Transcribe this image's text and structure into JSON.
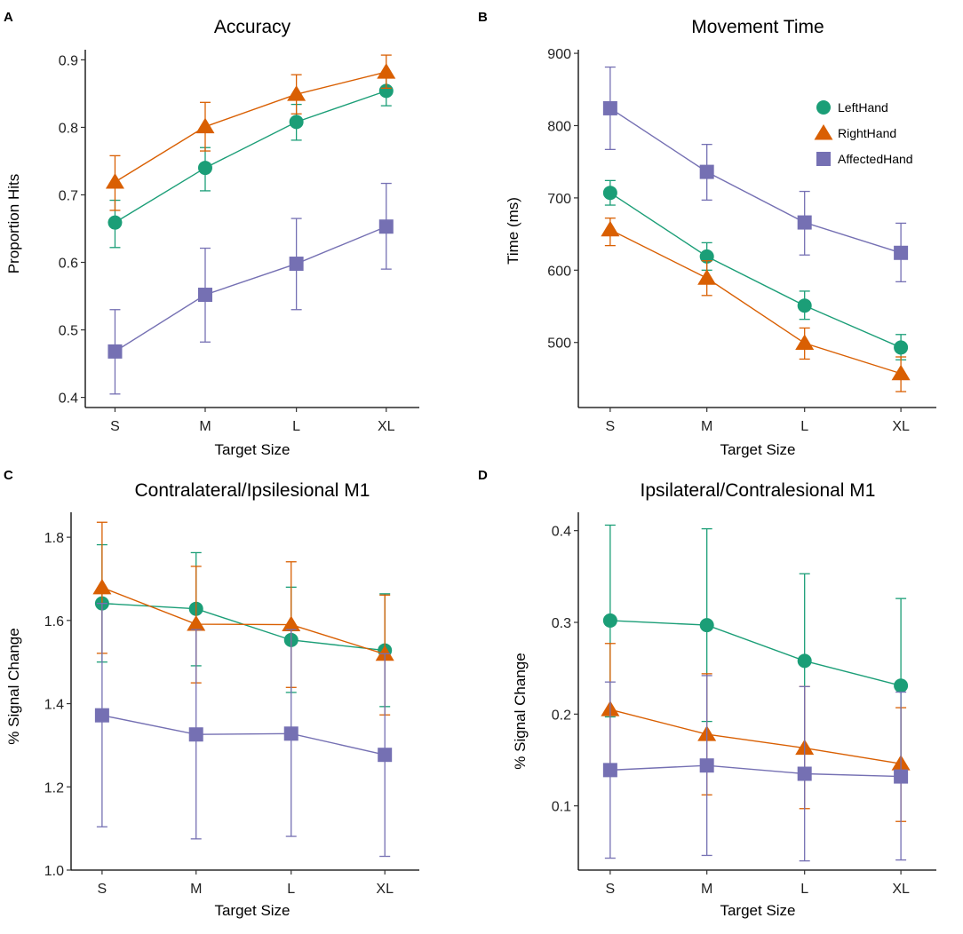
{
  "colors": {
    "LeftHand": "#1b9e77",
    "RightHand": "#d95f02",
    "AffectedHand": "#7570b3"
  },
  "chart_data": [
    {
      "panel": "A",
      "type": "line",
      "title": "Accuracy",
      "xlabel": "Target Size",
      "ylabel": "Proportion Hits",
      "categories": [
        "S",
        "M",
        "L",
        "XL"
      ],
      "ylim": [
        0.385,
        0.915
      ],
      "yticks": [
        0.4,
        0.5,
        0.6,
        0.7,
        0.8,
        0.9
      ],
      "ytick_labels": [
        "0.4",
        "0.5",
        "0.6",
        "0.7",
        "0.8",
        "0.9"
      ],
      "legend": false,
      "series": [
        {
          "name": "LeftHand",
          "marker": "circle",
          "values": [
            0.659,
            0.74,
            0.808,
            0.854
          ],
          "err_low": [
            0.622,
            0.706,
            0.781,
            0.832
          ],
          "err_high": [
            0.692,
            0.77,
            0.834,
            0.877
          ]
        },
        {
          "name": "RightHand",
          "marker": "triangle",
          "values": [
            0.719,
            0.801,
            0.849,
            0.882
          ],
          "err_low": [
            0.677,
            0.765,
            0.82,
            0.858
          ],
          "err_high": [
            0.758,
            0.837,
            0.878,
            0.907
          ]
        },
        {
          "name": "AffectedHand",
          "marker": "square",
          "values": [
            0.468,
            0.552,
            0.598,
            0.653
          ],
          "err_low": [
            0.405,
            0.482,
            0.53,
            0.59
          ],
          "err_high": [
            0.53,
            0.621,
            0.665,
            0.717
          ]
        }
      ]
    },
    {
      "panel": "B",
      "type": "line",
      "title": "Movement Time",
      "xlabel": "Target Size",
      "ylabel": "Time (ms)",
      "categories": [
        "S",
        "M",
        "L",
        "XL"
      ],
      "ylim": [
        410,
        905
      ],
      "yticks": [
        500,
        600,
        700,
        800,
        900
      ],
      "ytick_labels": [
        "500",
        "600",
        "700",
        "800",
        "900"
      ],
      "legend": true,
      "legend_position": "top-right",
      "series": [
        {
          "name": "LeftHand",
          "marker": "circle",
          "values": [
            707,
            619,
            551,
            493
          ],
          "err_low": [
            690,
            600,
            532,
            476
          ],
          "err_high": [
            724,
            638,
            571,
            511
          ]
        },
        {
          "name": "RightHand",
          "marker": "triangle",
          "values": [
            656,
            589,
            499,
            457
          ],
          "err_low": [
            634,
            565,
            477,
            432
          ],
          "err_high": [
            672,
            613,
            520,
            480
          ]
        },
        {
          "name": "AffectedHand",
          "marker": "square",
          "values": [
            824,
            736,
            666,
            624
          ],
          "err_low": [
            767,
            697,
            621,
            584
          ],
          "err_high": [
            881,
            774,
            709,
            665
          ]
        }
      ]
    },
    {
      "panel": "C",
      "type": "line",
      "title": "Contralateral/Ipsilesional M1",
      "xlabel": "Target Size",
      "ylabel": "% Signal Change",
      "categories": [
        "S",
        "M",
        "L",
        "XL"
      ],
      "ylim": [
        1.0,
        1.86
      ],
      "yticks": [
        1.0,
        1.2,
        1.4,
        1.6,
        1.8
      ],
      "ytick_labels": [
        "1.0",
        "1.2",
        "1.4",
        "1.6",
        "1.8"
      ],
      "legend": false,
      "series": [
        {
          "name": "LeftHand",
          "marker": "circle",
          "values": [
            1.641,
            1.628,
            1.553,
            1.528
          ],
          "err_low": [
            1.5,
            1.491,
            1.427,
            1.393
          ],
          "err_high": [
            1.782,
            1.763,
            1.68,
            1.664
          ]
        },
        {
          "name": "RightHand",
          "marker": "triangle",
          "values": [
            1.679,
            1.591,
            1.59,
            1.519
          ],
          "err_low": [
            1.521,
            1.45,
            1.439,
            1.373
          ],
          "err_high": [
            1.836,
            1.73,
            1.741,
            1.661
          ]
        },
        {
          "name": "AffectedHand",
          "marker": "square",
          "values": [
            1.372,
            1.326,
            1.328,
            1.277
          ],
          "err_low": [
            1.104,
            1.075,
            1.081,
            1.033
          ],
          "err_high": [
            1.641,
            1.578,
            1.578,
            1.52
          ]
        }
      ]
    },
    {
      "panel": "D",
      "type": "line",
      "title": "Ipsilateral/Contralesional M1",
      "xlabel": "Target Size",
      "ylabel": "% Signal Change",
      "categories": [
        "S",
        "M",
        "L",
        "XL"
      ],
      "ylim": [
        0.03,
        0.42
      ],
      "yticks": [
        0.1,
        0.2,
        0.3,
        0.4
      ],
      "ytick_labels": [
        "0.1",
        "0.2",
        "0.3",
        "0.4"
      ],
      "legend": false,
      "series": [
        {
          "name": "LeftHand",
          "marker": "circle",
          "values": [
            0.302,
            0.297,
            0.258,
            0.231
          ],
          "err_low": [
            0.197,
            0.192,
            0.163,
            0.136
          ],
          "err_high": [
            0.406,
            0.402,
            0.353,
            0.326
          ]
        },
        {
          "name": "RightHand",
          "marker": "triangle",
          "values": [
            0.205,
            0.178,
            0.163,
            0.146
          ],
          "err_low": [
            0.133,
            0.112,
            0.097,
            0.083
          ],
          "err_high": [
            0.277,
            0.244,
            0.23,
            0.207
          ]
        },
        {
          "name": "AffectedHand",
          "marker": "square",
          "values": [
            0.139,
            0.144,
            0.135,
            0.132
          ],
          "err_low": [
            0.043,
            0.046,
            0.04,
            0.041
          ],
          "err_high": [
            0.235,
            0.242,
            0.23,
            0.224
          ]
        }
      ]
    }
  ]
}
